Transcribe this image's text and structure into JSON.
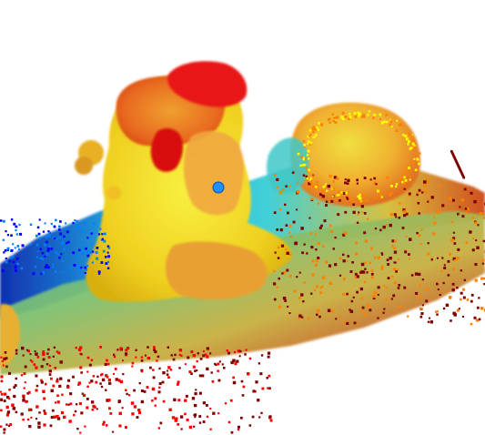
{
  "scene": {
    "kind": "colored 3d point cloud render",
    "colormap": [
      "#00007f",
      "#0000ff",
      "#0080ff",
      "#00ffff",
      "#80ff80",
      "#ffff00",
      "#ff8000",
      "#ff0000",
      "#7f0000"
    ],
    "background": "#ffffff",
    "marker_color": "#1f8fff"
  }
}
